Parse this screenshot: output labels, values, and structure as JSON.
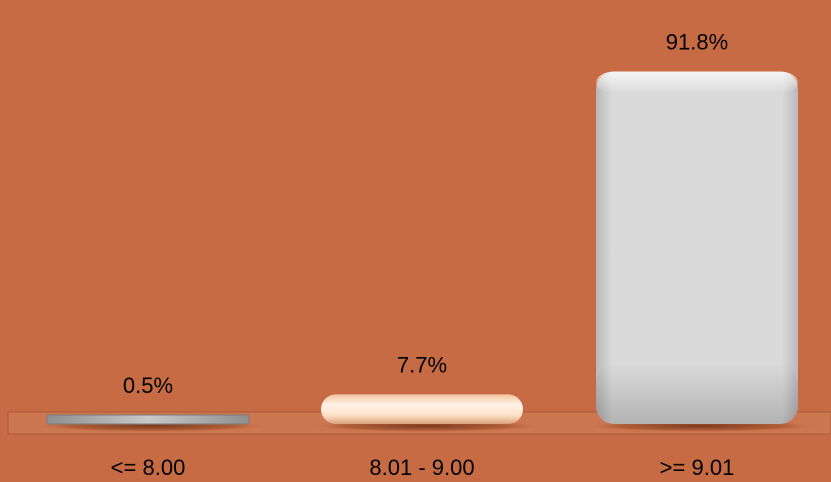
{
  "chart_data": {
    "type": "bar",
    "categories": [
      "<= 8.00",
      "8.01 - 9.00",
      ">= 9.01"
    ],
    "values": [
      0.5,
      7.7,
      91.8
    ],
    "value_labels": [
      "0.5%",
      "7.7%",
      "91.8%"
    ],
    "ylim": [
      0,
      100
    ],
    "grid": false,
    "legend": "none",
    "colors": {
      "background": "#c66b43",
      "bars": [
        "#b8b8b8",
        "#fde0c6",
        "#dcdcdc"
      ],
      "floor": "#d17a52"
    }
  }
}
